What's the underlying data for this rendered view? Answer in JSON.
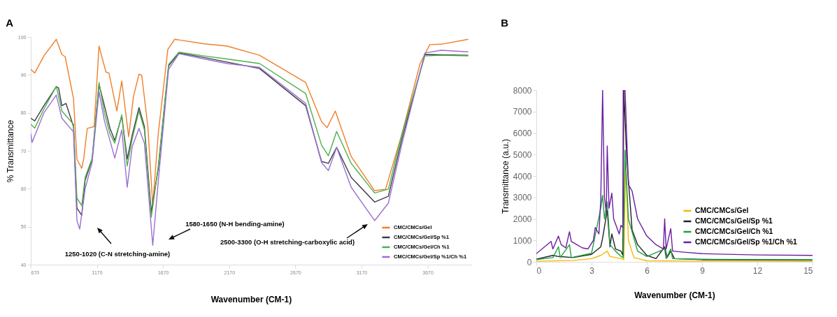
{
  "chart_data": [
    {
      "type": "line",
      "title": "A",
      "xlabel": "Wavenumber (CM-1)",
      "ylabel": "% Transmittance",
      "xlim": [
        670,
        4000
      ],
      "xticks": [
        670,
        1170,
        1670,
        2170,
        2670,
        3170,
        3670
      ],
      "ylim": [
        40,
        100
      ],
      "yticks": [
        40,
        50,
        60,
        70,
        80,
        90,
        100
      ],
      "legend": "bottom right",
      "annotations": [
        "1250-1020 (C-N stretching-amine)",
        "1580-1650 (N-H bending-amine)",
        "2500-3300 (O-H stretching-carboxylic acid)"
      ],
      "series": [
        {
          "name": "CMC/CMCs/Gel",
          "color": "#f07f2a",
          "x": [
            670,
            700,
            769,
            863,
            905,
            930,
            993,
            1019,
            1055,
            1070,
            1097,
            1149,
            1186,
            1238,
            1261,
            1321,
            1358,
            1410,
            1446,
            1488,
            1509,
            1555,
            1592,
            1634,
            1706,
            1758,
            1982,
            2154,
            2399,
            2748,
            2868,
            2910,
            2972,
            3092,
            3269,
            3352,
            3477,
            3613,
            3686,
            3773,
            3977
          ],
          "values": [
            91.5,
            90.5,
            95,
            99.4,
            95.4,
            94.8,
            83.8,
            67.8,
            65.4,
            67.8,
            75.9,
            76.4,
            97.6,
            90.8,
            90.5,
            80.5,
            88.4,
            73.7,
            84.3,
            90.2,
            89.9,
            76.4,
            55.6,
            74.6,
            96.7,
            99.4,
            98.2,
            97.6,
            95.2,
            88,
            77.7,
            76.1,
            80.5,
            68.5,
            59.5,
            59.9,
            74.6,
            93,
            98,
            98.1,
            99.4
          ]
        },
        {
          "name": "CMC/CMCs/Gel/Sp %1",
          "color": "#3d3d4a",
          "x": [
            670,
            700,
            769,
            863,
            880,
            905,
            936,
            993,
            1019,
            1055,
            1081,
            1134,
            1186,
            1227,
            1269,
            1305,
            1358,
            1399,
            1436,
            1488,
            1529,
            1581,
            1634,
            1712,
            1790,
            1982,
            2154,
            2399,
            2748,
            2868,
            2920,
            2982,
            3092,
            3269,
            3373,
            3477,
            3649,
            3773,
            3977
          ],
          "values": [
            78.6,
            77.9,
            81.9,
            86.9,
            86.6,
            81.9,
            82.5,
            76.4,
            54.9,
            53,
            62.2,
            67.8,
            87.5,
            81.9,
            75.9,
            72.7,
            79.2,
            67.8,
            74,
            81.4,
            76.4,
            53.8,
            65.4,
            92.4,
            95.8,
            94.6,
            93.4,
            91.7,
            81.9,
            67.2,
            66.7,
            70.9,
            63,
            56.5,
            58,
            73.3,
            95.4,
            95.3,
            95.2
          ]
        },
        {
          "name": "CMC/CMCs/Gel/Ch %1",
          "color": "#4db04a",
          "x": [
            670,
            700,
            769,
            863,
            905,
            993,
            1019,
            1055,
            1081,
            1134,
            1186,
            1227,
            1269,
            1305,
            1358,
            1399,
            1436,
            1488,
            1529,
            1581,
            1634,
            1712,
            1790,
            1982,
            2154,
            2399,
            2748,
            2868,
            2920,
            2982,
            3092,
            3269,
            3373,
            3477,
            3649,
            3773,
            3977
          ],
          "values": [
            77,
            76,
            81,
            87,
            80.5,
            77,
            57.5,
            55.6,
            63,
            68,
            88,
            80,
            74.5,
            72,
            79.5,
            66,
            73,
            80.5,
            75.5,
            52.5,
            66,
            92.8,
            96,
            95,
            94.2,
            93,
            85.1,
            71.5,
            68.7,
            75.1,
            66.7,
            58.9,
            59.9,
            74.6,
            95,
            95.2,
            95
          ]
        },
        {
          "name": "CMC/CMCs/Gel/Sp %1/Ch %1",
          "color": "#9b6fd0",
          "x": [
            670,
            680,
            769,
            863,
            905,
            993,
            1019,
            1040,
            1081,
            1134,
            1186,
            1227,
            1269,
            1305,
            1358,
            1399,
            1436,
            1488,
            1529,
            1592,
            1634,
            1712,
            1790,
            1982,
            2154,
            2399,
            2748,
            2868,
            2920,
            2982,
            3092,
            3269,
            3373,
            3477,
            3649,
            3773,
            3977
          ],
          "values": [
            74.6,
            72.2,
            80,
            84.7,
            78.6,
            75,
            51.6,
            49.4,
            60,
            67,
            85.6,
            77.9,
            72.7,
            68.1,
            75.5,
            60.4,
            71,
            75.9,
            72,
            45.1,
            62,
            91.5,
            95.6,
            94.2,
            93,
            92,
            82.5,
            66.9,
            64.8,
            70.9,
            60.4,
            51.6,
            56.2,
            72,
            95.8,
            96.5,
            96.1
          ]
        }
      ]
    },
    {
      "type": "line",
      "title": "B",
      "xlabel": "Wavenumber (CM-1)",
      "ylabel": "Transmittance (a.u.)",
      "xlim": [
        0,
        15
      ],
      "xticks": [
        0,
        3,
        6,
        9,
        12,
        15
      ],
      "ylim": [
        0,
        8000
      ],
      "yticks": [
        0,
        1000,
        2000,
        3000,
        4000,
        5000,
        6000,
        7000,
        8000
      ],
      "legend": "bottom right",
      "series": [
        {
          "name": "CMC/CMCs/Gel",
          "color": "#f5b800",
          "x": [
            0,
            2,
            3,
            3.5,
            3.85,
            4,
            4.6,
            4.75,
            4.85,
            5,
            5.3,
            6,
            9,
            15
          ],
          "values": [
            30,
            60,
            150,
            300,
            500,
            250,
            150,
            100,
            4600,
            1000,
            200,
            50,
            30,
            20
          ]
        },
        {
          "name": "CMC/CMCs/Gel/Sp %1",
          "color": "#222222",
          "x": [
            0,
            0.9,
            1.2,
            2,
            3,
            3.5,
            3.6,
            3.85,
            4,
            4.1,
            4.3,
            4.6,
            4.7,
            4.75,
            4.9,
            5.2,
            5.5,
            6,
            6.5,
            6.97,
            7.1,
            7.3,
            7.5,
            9,
            15
          ],
          "values": [
            120,
            300,
            250,
            200,
            350,
            700,
            1100,
            2400,
            700,
            1300,
            600,
            500,
            300,
            8000,
            5000,
            1500,
            800,
            300,
            150,
            700,
            200,
            500,
            150,
            100,
            80
          ]
        },
        {
          "name": "CMC/CMCs/Gel/Ch %1",
          "color": "#1fa040",
          "x": [
            0,
            0.9,
            1.2,
            1.3,
            1.8,
            1.9,
            3,
            3.5,
            3.6,
            3.7,
            3.85,
            4,
            4.3,
            4.6,
            4.72,
            4.82,
            5,
            5.5,
            6,
            6.97,
            7.05,
            7.3,
            7.4,
            9,
            15
          ],
          "values": [
            100,
            200,
            700,
            200,
            800,
            200,
            400,
            2500,
            3100,
            2000,
            2800,
            800,
            500,
            250,
            200,
            5200,
            2000,
            500,
            250,
            600,
            150,
            600,
            150,
            120,
            100
          ]
        },
        {
          "name": "CMC/CMCs/Gel/Sp %1/Ch %1",
          "color": "#6a1fa0",
          "x": [
            0,
            0.8,
            0.9,
            1.2,
            1.35,
            1.6,
            1.8,
            1.9,
            2.2,
            2.5,
            2.8,
            3.1,
            3.2,
            3.4,
            3.5,
            3.6,
            3.7,
            3.8,
            3.85,
            3.95,
            4.1,
            4.2,
            4.5,
            4.6,
            4.7,
            4.72,
            4.82,
            5,
            5.2,
            5.5,
            6,
            6.5,
            6.9,
            6.97,
            7.05,
            7.3,
            7.4,
            8,
            9,
            12,
            15
          ],
          "values": [
            380,
            950,
            600,
            1200,
            800,
            650,
            1400,
            950,
            800,
            650,
            600,
            1000,
            1600,
            1300,
            2900,
            8000,
            3000,
            2300,
            5400,
            2500,
            3200,
            2000,
            1300,
            1700,
            1600,
            8000,
            8000,
            3600,
            3300,
            2000,
            1200,
            800,
            600,
            2000,
            600,
            1550,
            500,
            450,
            380,
            320,
            300
          ]
        }
      ]
    }
  ]
}
